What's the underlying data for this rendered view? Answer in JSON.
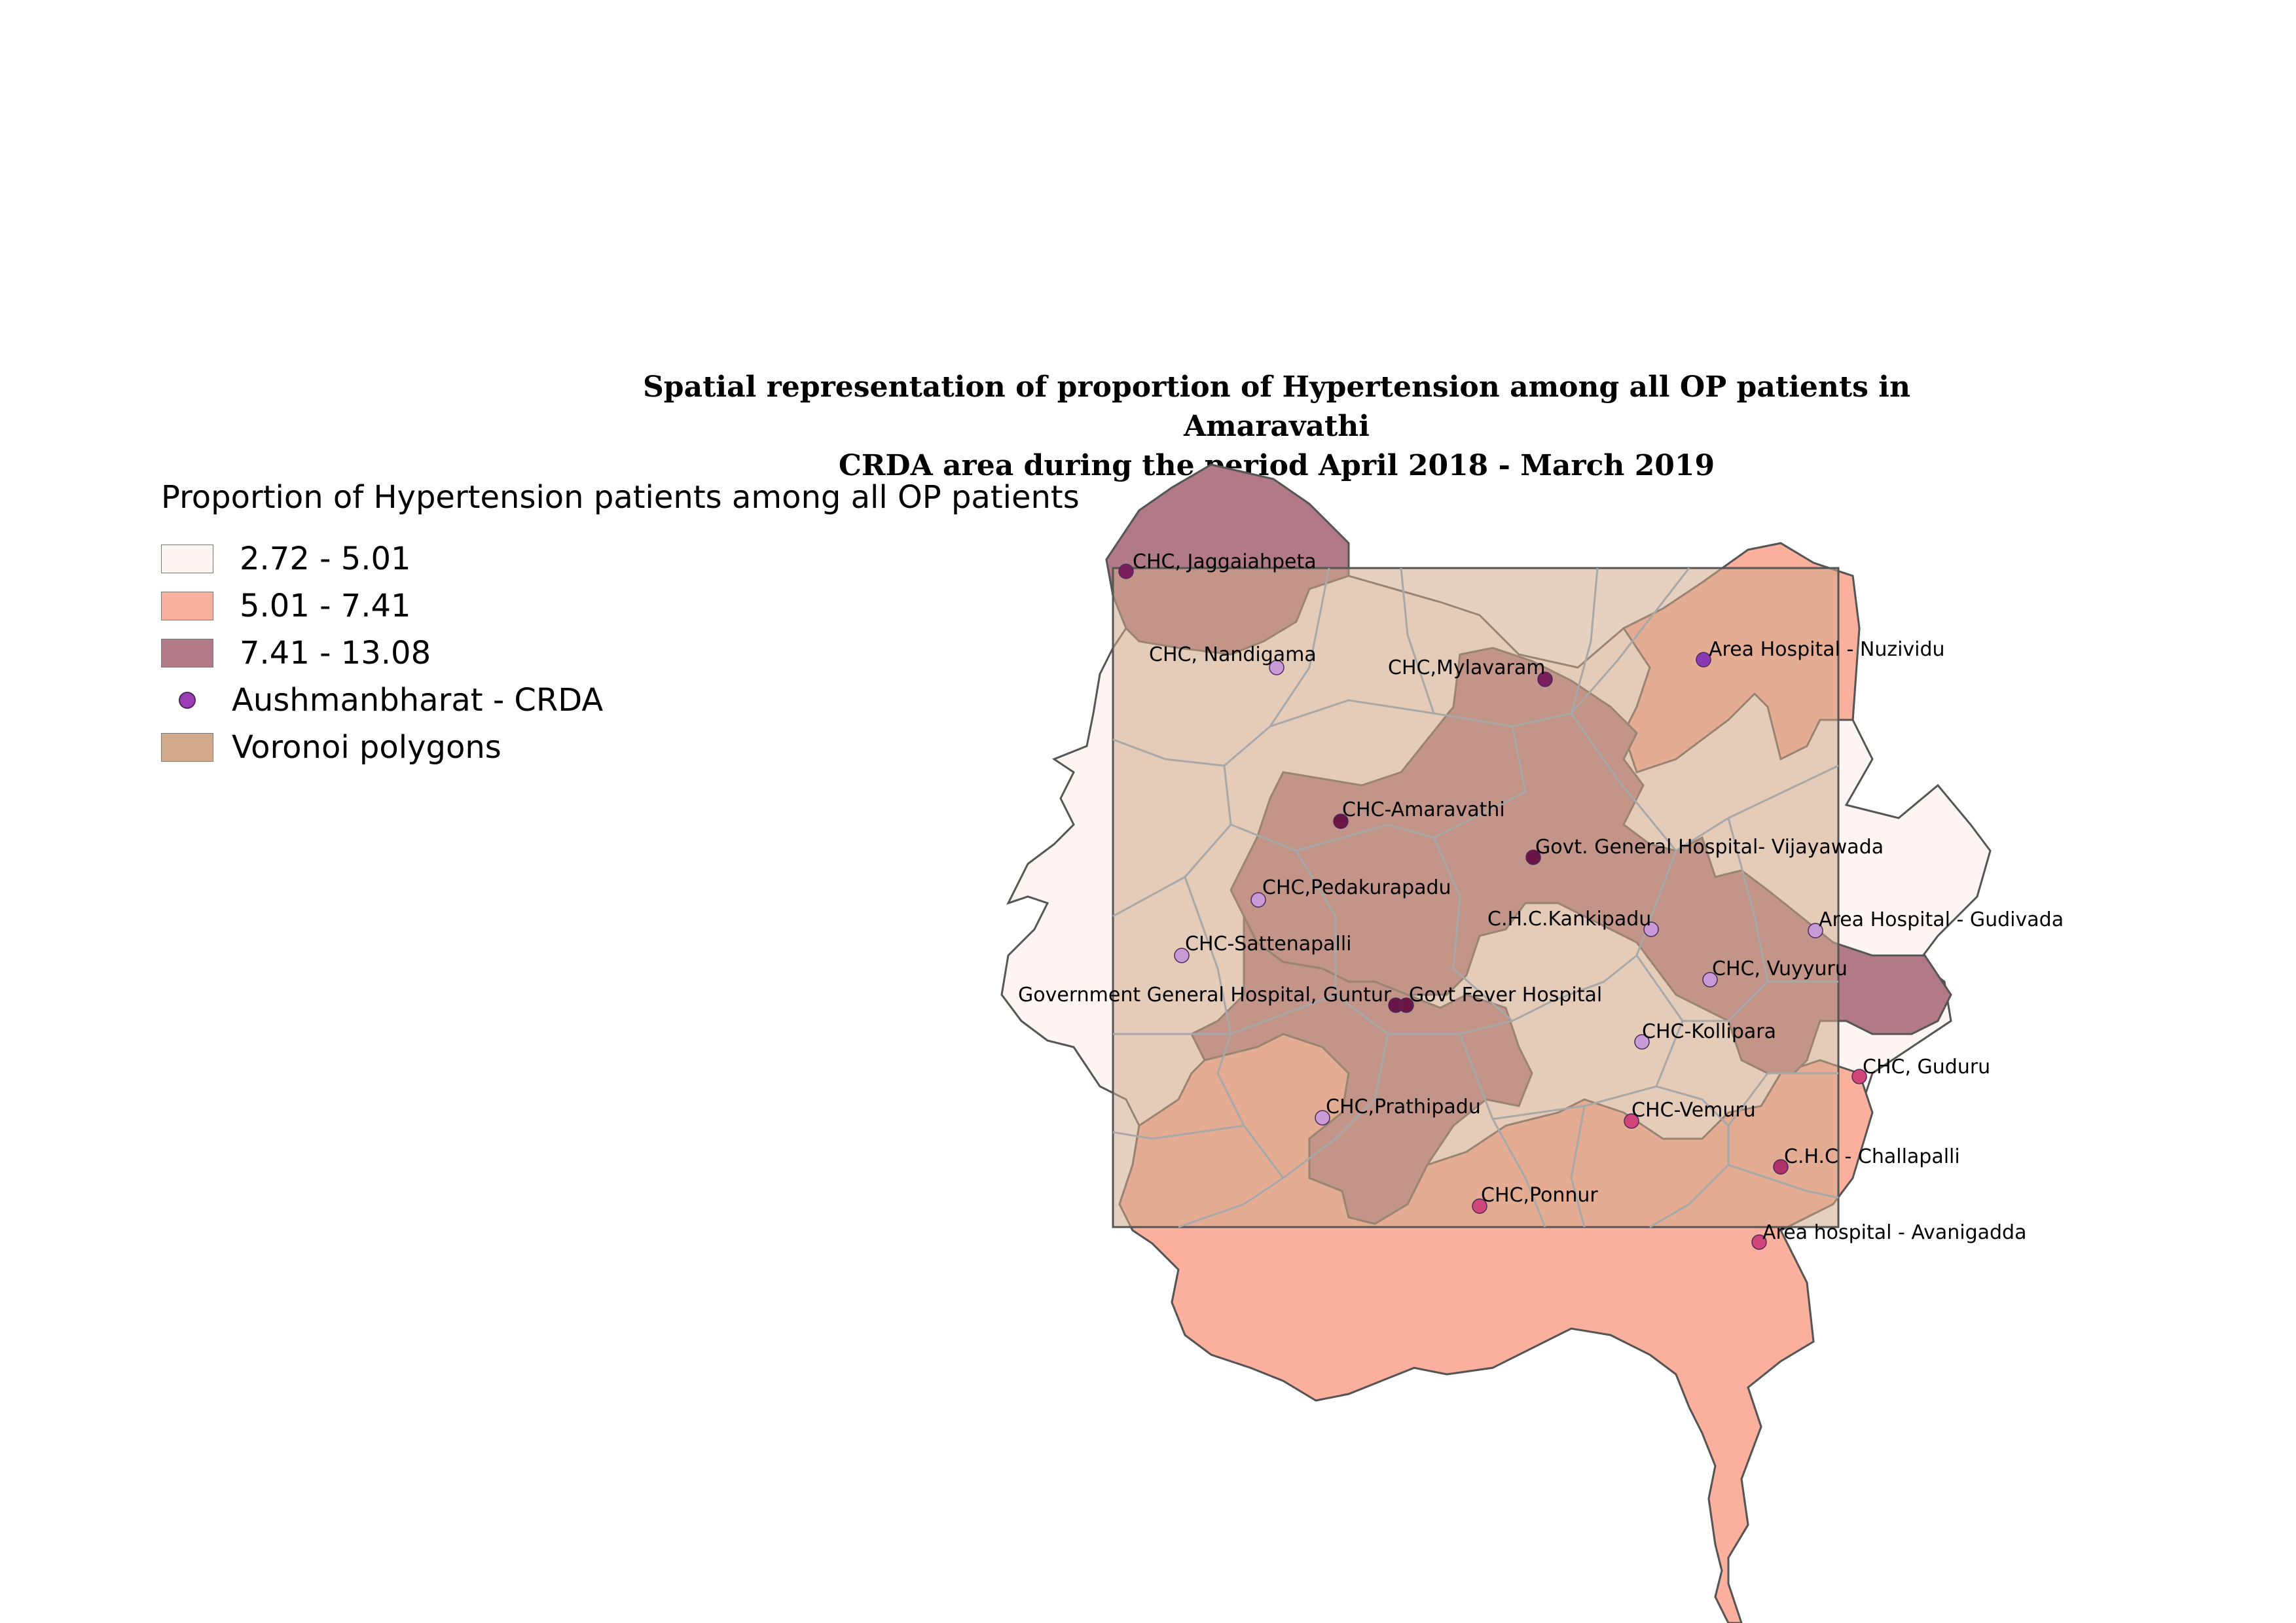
{
  "title": {
    "line1": "Spatial representation of proportion of Hypertension among all OP patients in Amaravathi",
    "line2": "CRDA area during the period April 2018 - March 2019"
  },
  "legend": {
    "title": "Proportion of Hypertension patients among all OP patients",
    "items": [
      {
        "label": "2.72 - 5.01",
        "color": "#fdf5f2"
      },
      {
        "label": "5.01 - 7.41",
        "color": "#fbb09e"
      },
      {
        "label": "7.41 - 13.08",
        "color": "#b17a86"
      },
      {
        "label": "Aushmanbharat - CRDA",
        "color": "#9b3bb6"
      },
      {
        "label": "Voronoi polygons",
        "color": "#d2a98b"
      }
    ]
  },
  "facilities": [
    {
      "name": "CHC, Jaggaiahpeta",
      "color": "#7a1f5c"
    },
    {
      "name": "CHC, Nandigama",
      "color": "#c89ad6"
    },
    {
      "name": "CHC,Mylavaram",
      "color": "#7a1f5c"
    },
    {
      "name": "Area Hospital - Nuzividu",
      "color": "#8a3ab0"
    },
    {
      "name": "CHC-Amaravathi",
      "color": "#6a1546"
    },
    {
      "name": "Govt. General Hospital- Vijayawada",
      "color": "#6a1546"
    },
    {
      "name": "CHC,Pedakurapadu",
      "color": "#c89ad6"
    },
    {
      "name": "CHC-Sattenapalli",
      "color": "#c89ad6"
    },
    {
      "name": "C.H.C.Kankipadu",
      "color": "#c89ad6"
    },
    {
      "name": "Area Hospital - Gudivada",
      "color": "#c89ad6"
    },
    {
      "name": "CHC, Vuyyuru",
      "color": "#c89ad6"
    },
    {
      "name": "Government General Hospital, Guntur",
      "color": "#6a1546"
    },
    {
      "name": "Govt Fever Hospital",
      "color": "#6a1546"
    },
    {
      "name": "CHC-Kollipara",
      "color": "#c89ad6"
    },
    {
      "name": "CHC, Guduru",
      "color": "#d0467a"
    },
    {
      "name": "CHC,Prathipadu",
      "color": "#c89ad6"
    },
    {
      "name": "CHC-Vemuru",
      "color": "#d0467a"
    },
    {
      "name": "C.H.C - Challapalli",
      "color": "#b0306a"
    },
    {
      "name": "CHC,Ponnur",
      "color": "#d0467a"
    },
    {
      "name": "Area hospital - Avanigadda",
      "color": "#d0467a"
    }
  ]
}
